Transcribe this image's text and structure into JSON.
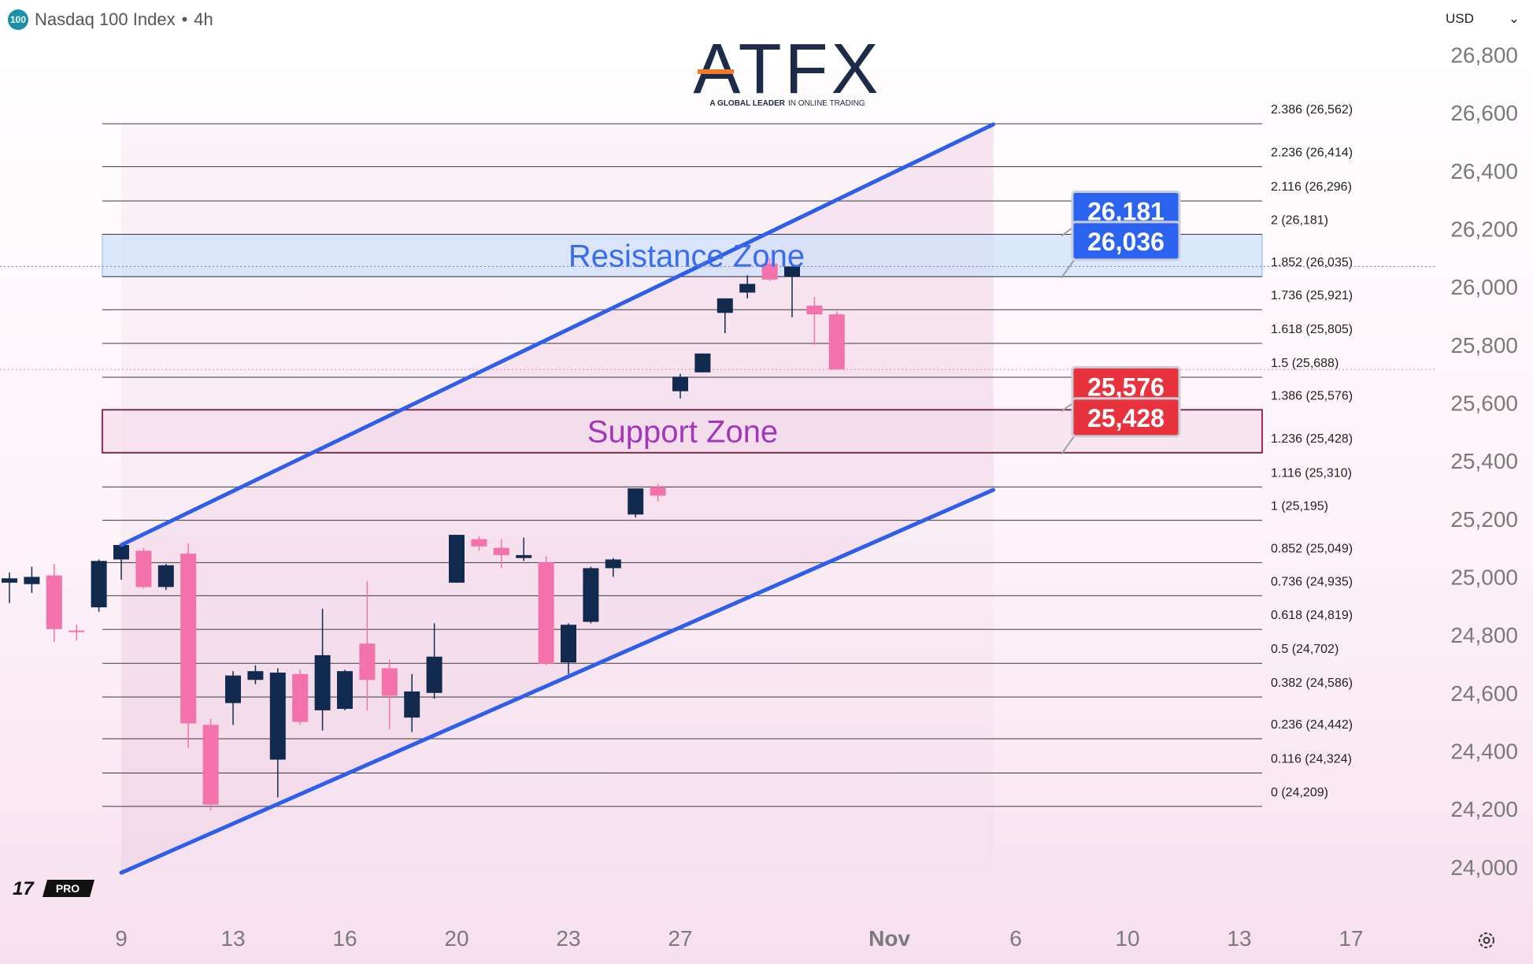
{
  "header": {
    "badge": "100",
    "symbol": "Nasdaq 100 Index",
    "separator": "•",
    "interval": "4h"
  },
  "currency": {
    "label": "USD",
    "arrow": "⌄"
  },
  "logo": {
    "text": "ATFX",
    "tagline_bold": "A GLOBAL LEADER",
    "tagline_rest": "IN ONLINE TRADING"
  },
  "watermark": {
    "mark": "17",
    "label": "PRO"
  },
  "colors": {
    "bull": "#132a4f",
    "bear": "#f472ac",
    "channel": "#2f5fe8",
    "resistance": "#3b6cf0",
    "support": "#a238b8",
    "tag_blue": "#2b62f0",
    "tag_red": "#e8333e",
    "fib_line": "#3a3a3a",
    "axis_text": "#7a7a7a"
  },
  "chart_data": {
    "type": "candlestick",
    "title": "Nasdaq 100 Index • 4h",
    "xlabel": "",
    "ylabel": "",
    "ylim": [
      23880,
      26880
    ],
    "y_ticks": [
      26800,
      26600,
      26400,
      26200,
      26000,
      25800,
      25600,
      25400,
      25200,
      25000,
      24800,
      24600,
      24400,
      24200,
      24000
    ],
    "y_tick_labels": [
      "26,800",
      "26,600",
      "26,400",
      "26,200",
      "26,000",
      "25,800",
      "25,600",
      "25,400",
      "25,200",
      "25,000",
      "24,800",
      "24,600",
      "24,400",
      "24,200",
      "24,000"
    ],
    "x_ticks": [
      {
        "label": "9",
        "index": 5
      },
      {
        "label": "13",
        "index": 10
      },
      {
        "label": "16",
        "index": 15
      },
      {
        "label": "20",
        "index": 20
      },
      {
        "label": "23",
        "index": 25
      },
      {
        "label": "27",
        "index": 30
      },
      {
        "label": "Nov",
        "index": 39
      },
      {
        "label": "6",
        "index": 45
      },
      {
        "label": "10",
        "index": 50
      },
      {
        "label": "13",
        "index": 55
      },
      {
        "label": "17",
        "index": 60
      }
    ],
    "candles": [
      {
        "i": 0,
        "o": 24980,
        "h": 25015,
        "l": 24910,
        "c": 24995
      },
      {
        "i": 1,
        "o": 24975,
        "h": 25035,
        "l": 24945,
        "c": 25000
      },
      {
        "i": 2,
        "o": 25005,
        "h": 25045,
        "l": 24775,
        "c": 24820
      },
      {
        "i": 3,
        "o": 24815,
        "h": 24835,
        "l": 24780,
        "c": 24810
      },
      {
        "i": 4,
        "o": 24895,
        "h": 25060,
        "l": 24880,
        "c": 25055
      },
      {
        "i": 5,
        "o": 25060,
        "h": 25105,
        "l": 24990,
        "c": 25110
      },
      {
        "i": 6,
        "o": 25090,
        "h": 25100,
        "l": 24960,
        "c": 24965
      },
      {
        "i": 7,
        "o": 24965,
        "h": 25045,
        "l": 24955,
        "c": 25040
      },
      {
        "i": 8,
        "o": 25080,
        "h": 25115,
        "l": 24410,
        "c": 24495
      },
      {
        "i": 9,
        "o": 24490,
        "h": 24510,
        "l": 24195,
        "c": 24215
      },
      {
        "i": 10,
        "o": 24565,
        "h": 24675,
        "l": 24490,
        "c": 24660
      },
      {
        "i": 11,
        "o": 24645,
        "h": 24695,
        "l": 24630,
        "c": 24675
      },
      {
        "i": 12,
        "o": 24370,
        "h": 24685,
        "l": 24240,
        "c": 24670
      },
      {
        "i": 13,
        "o": 24665,
        "h": 24680,
        "l": 24490,
        "c": 24500
      },
      {
        "i": 14,
        "o": 24540,
        "h": 24890,
        "l": 24470,
        "c": 24730
      },
      {
        "i": 15,
        "o": 24545,
        "h": 24680,
        "l": 24540,
        "c": 24675
      },
      {
        "i": 16,
        "o": 24770,
        "h": 24985,
        "l": 24540,
        "c": 24645
      },
      {
        "i": 17,
        "o": 24685,
        "h": 24715,
        "l": 24475,
        "c": 24590
      },
      {
        "i": 18,
        "o": 24515,
        "h": 24665,
        "l": 24465,
        "c": 24605
      },
      {
        "i": 19,
        "o": 24600,
        "h": 24840,
        "l": 24580,
        "c": 24725
      },
      {
        "i": 20,
        "o": 24980,
        "h": 25140,
        "l": 24980,
        "c": 25145
      },
      {
        "i": 21,
        "o": 25130,
        "h": 25140,
        "l": 25090,
        "c": 25105
      },
      {
        "i": 22,
        "o": 25100,
        "h": 25130,
        "l": 25030,
        "c": 25075
      },
      {
        "i": 23,
        "o": 25065,
        "h": 25135,
        "l": 25055,
        "c": 25075
      },
      {
        "i": 24,
        "o": 25050,
        "h": 25070,
        "l": 24695,
        "c": 24700
      },
      {
        "i": 25,
        "o": 24705,
        "h": 24840,
        "l": 24665,
        "c": 24835
      },
      {
        "i": 26,
        "o": 24845,
        "h": 25035,
        "l": 24840,
        "c": 25030
      },
      {
        "i": 27,
        "o": 25030,
        "h": 25065,
        "l": 25000,
        "c": 25060
      },
      {
        "i": 28,
        "o": 25215,
        "h": 25300,
        "l": 25205,
        "c": 25305
      },
      {
        "i": 29,
        "o": 25310,
        "h": 25320,
        "l": 25260,
        "c": 25280
      },
      {
        "i": 30,
        "o": 25640,
        "h": 25700,
        "l": 25615,
        "c": 25690
      },
      {
        "i": 31,
        "o": 25705,
        "h": 25770,
        "l": 25705,
        "c": 25770
      },
      {
        "i": 32,
        "o": 25910,
        "h": 25945,
        "l": 25840,
        "c": 25960
      },
      {
        "i": 33,
        "o": 25980,
        "h": 26040,
        "l": 25960,
        "c": 26010
      },
      {
        "i": 34,
        "o": 26080,
        "h": 26100,
        "l": 26020,
        "c": 26025
      },
      {
        "i": 35,
        "o": 26035,
        "h": 26060,
        "l": 25895,
        "c": 26070
      },
      {
        "i": 36,
        "o": 25935,
        "h": 25965,
        "l": 25800,
        "c": 25905
      },
      {
        "i": 37,
        "o": 25905,
        "h": 25915,
        "l": 25715,
        "c": 25715
      }
    ],
    "fib_levels": [
      {
        "label": "2.386 (26,562)",
        "value": 26562
      },
      {
        "label": "2.236 (26,414)",
        "value": 26414
      },
      {
        "label": "2.116 (26,296)",
        "value": 26296
      },
      {
        "label": "2 (26,181)",
        "value": 26181
      },
      {
        "label": "1.852 (26,035)",
        "value": 26035
      },
      {
        "label": "1.736 (25,921)",
        "value": 25921
      },
      {
        "label": "1.618 (25,805)",
        "value": 25805
      },
      {
        "label": "1.5 (25,688)",
        "value": 25688
      },
      {
        "label": "1.386 (25,576)",
        "value": 25576
      },
      {
        "label": "1.236 (25,428)",
        "value": 25428
      },
      {
        "label": "1.116 (25,310)",
        "value": 25310
      },
      {
        "label": "1 (25,195)",
        "value": 25195
      },
      {
        "label": "0.852 (25,049)",
        "value": 25049
      },
      {
        "label": "0.736 (24,935)",
        "value": 24935
      },
      {
        "label": "0.618 (24,819)",
        "value": 24819
      },
      {
        "label": "0.5 (24,702)",
        "value": 24702
      },
      {
        "label": "0.382 (24,586)",
        "value": 24586
      },
      {
        "label": "0.236 (24,442)",
        "value": 24442
      },
      {
        "label": "0.116 (24,324)",
        "value": 24324
      },
      {
        "label": "0 (24,209)",
        "value": 24209
      }
    ],
    "zones": [
      {
        "label": "Resistance Zone",
        "kind": "resistance",
        "top": 26181,
        "bottom": 26035,
        "from_index": 4,
        "to_index": 55
      },
      {
        "label": "Support Zone",
        "kind": "support",
        "top": 25576,
        "bottom": 25428,
        "from_index": 4,
        "to_index": 55
      }
    ],
    "channel": {
      "upper": [
        {
          "i": 5,
          "v": 25110
        },
        {
          "i": 44,
          "v": 26560
        }
      ],
      "lower": [
        {
          "i": 5,
          "v": 23980
        },
        {
          "i": 44,
          "v": 25300
        }
      ]
    },
    "price_tags": [
      {
        "text": "26,181",
        "value": 26181,
        "color": "blue"
      },
      {
        "text": "26,036",
        "value": 26036,
        "color": "blue"
      },
      {
        "text": "25,576",
        "value": 25576,
        "color": "red"
      },
      {
        "text": "25,428",
        "value": 25428,
        "color": "red"
      }
    ],
    "dotted_lines": [
      26070,
      25715
    ]
  }
}
